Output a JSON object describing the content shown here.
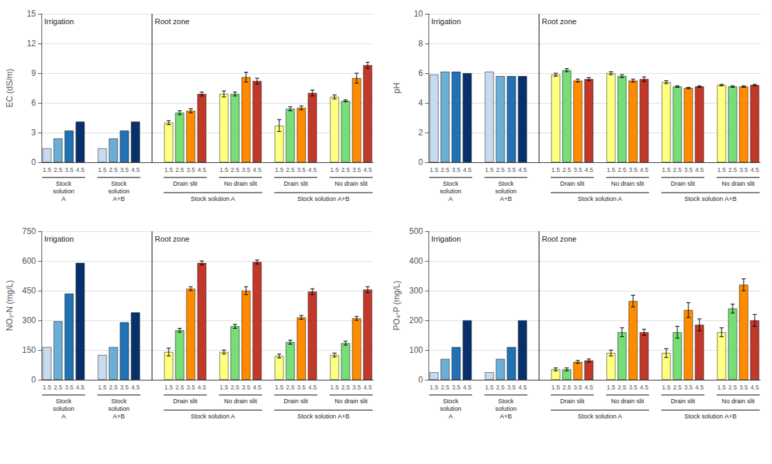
{
  "chart_data": [
    {
      "type": "bar",
      "ylabel": "EC (dS/m)",
      "ylim": [
        0,
        15
      ],
      "yticks": [
        0,
        3,
        6,
        9,
        12,
        15
      ],
      "grid": true,
      "categories": [
        "1.5",
        "2.5",
        "3.5",
        "4.5"
      ],
      "sections": [
        {
          "label": "Irrigation",
          "groups": [
            {
              "label": "Stock\nsolution\nA",
              "values": [
                1.4,
                2.4,
                3.2,
                4.1
              ],
              "colors": [
                "#c6dbef",
                "#6baed6",
                "#2171b5",
                "#08306b"
              ]
            },
            {
              "label": "Stock\nsolution\nA+B",
              "values": [
                1.4,
                2.4,
                3.2,
                4.1
              ],
              "colors": [
                "#c6dbef",
                "#6baed6",
                "#2171b5",
                "#08306b"
              ]
            }
          ]
        },
        {
          "label": "Root zone",
          "groups": [
            {
              "label": "Drain slit",
              "sublabel": "Stock solution A",
              "values": [
                4.0,
                5.0,
                5.2,
                6.9
              ],
              "errors": [
                0.2,
                0.2,
                0.2,
                0.2
              ],
              "colors": [
                "#ffff80",
                "#77dd77",
                "#ff8c00",
                "#c0392b"
              ]
            },
            {
              "label": "No drain slit",
              "sublabel": "Stock solution A",
              "values": [
                6.9,
                6.9,
                8.6,
                8.2
              ],
              "errors": [
                0.3,
                0.2,
                0.5,
                0.3
              ],
              "colors": [
                "#ffff80",
                "#77dd77",
                "#ff8c00",
                "#c0392b"
              ]
            },
            {
              "label": "Drain slit",
              "sublabel": "Stock solution A+B",
              "values": [
                3.7,
                5.4,
                5.5,
                7.0
              ],
              "errors": [
                0.6,
                0.2,
                0.2,
                0.3
              ],
              "colors": [
                "#ffff80",
                "#77dd77",
                "#ff8c00",
                "#c0392b"
              ]
            },
            {
              "label": "No drain slit",
              "sublabel": "Stock solution A+B",
              "values": [
                6.6,
                6.2,
                8.5,
                9.8
              ],
              "errors": [
                0.2,
                0.1,
                0.5,
                0.3
              ],
              "colors": [
                "#ffff80",
                "#77dd77",
                "#ff8c00",
                "#c0392b"
              ]
            }
          ]
        }
      ]
    },
    {
      "type": "bar",
      "ylabel": "pH",
      "ylim": [
        0,
        10
      ],
      "yticks": [
        0,
        2,
        4,
        6,
        8,
        10
      ],
      "grid": true,
      "categories": [
        "1.5",
        "2.5",
        "3.5",
        "4.5"
      ],
      "sections": [
        {
          "label": "Irrigation",
          "groups": [
            {
              "label": "Stock\nsolution\nA",
              "values": [
                5.9,
                6.1,
                6.1,
                6.0
              ],
              "colors": [
                "#c6dbef",
                "#6baed6",
                "#2171b5",
                "#08306b"
              ]
            },
            {
              "label": "Stock\nsolution\nA+B",
              "values": [
                6.1,
                5.8,
                5.8,
                5.8
              ],
              "colors": [
                "#c6dbef",
                "#6baed6",
                "#2171b5",
                "#08306b"
              ]
            }
          ]
        },
        {
          "label": "Root zone",
          "groups": [
            {
              "label": "Drain slit",
              "sublabel": "Stock solution A",
              "values": [
                5.9,
                6.2,
                5.5,
                5.6
              ],
              "errors": [
                0.1,
                0.1,
                0.1,
                0.1
              ],
              "colors": [
                "#ffff80",
                "#77dd77",
                "#ff8c00",
                "#c0392b"
              ]
            },
            {
              "label": "No drain slit",
              "sublabel": "Stock solution A",
              "values": [
                6.0,
                5.8,
                5.5,
                5.6
              ],
              "errors": [
                0.1,
                0.1,
                0.1,
                0.15
              ],
              "colors": [
                "#ffff80",
                "#77dd77",
                "#ff8c00",
                "#c0392b"
              ]
            },
            {
              "label": "Drain slit",
              "sublabel": "Stock solution A+B",
              "values": [
                5.4,
                5.1,
                5.0,
                5.1
              ],
              "errors": [
                0.1,
                0.05,
                0.05,
                0.05
              ],
              "colors": [
                "#ffff80",
                "#77dd77",
                "#ff8c00",
                "#c0392b"
              ]
            },
            {
              "label": "No drain slit",
              "sublabel": "Stock solution A+B",
              "values": [
                5.2,
                5.1,
                5.1,
                5.2
              ],
              "errors": [
                0.05,
                0.05,
                0.05,
                0.05
              ],
              "colors": [
                "#ffff80",
                "#77dd77",
                "#ff8c00",
                "#c0392b"
              ]
            }
          ]
        }
      ]
    },
    {
      "type": "bar",
      "ylabel": "NO₃-N (mg/L)",
      "ylim": [
        0,
        750
      ],
      "yticks": [
        0,
        150,
        300,
        450,
        600,
        750
      ],
      "grid": true,
      "categories": [
        "1.5",
        "2.5",
        "3.5",
        "4.5"
      ],
      "sections": [
        {
          "label": "Irrigation",
          "groups": [
            {
              "label": "Stock\nsolution\nA",
              "values": [
                165,
                295,
                435,
                590
              ],
              "colors": [
                "#c6dbef",
                "#6baed6",
                "#2171b5",
                "#08306b"
              ]
            },
            {
              "label": "Stock\nsolution\nA+B",
              "values": [
                125,
                165,
                290,
                340
              ],
              "colors": [
                "#c6dbef",
                "#6baed6",
                "#2171b5",
                "#08306b"
              ]
            }
          ]
        },
        {
          "label": "Root zone",
          "groups": [
            {
              "label": "Drain slit",
              "sublabel": "Stock solution A",
              "values": [
                140,
                250,
                460,
                590
              ],
              "errors": [
                20,
                10,
                10,
                10
              ],
              "colors": [
                "#ffff80",
                "#77dd77",
                "#ff8c00",
                "#c0392b"
              ]
            },
            {
              "label": "No drain slit",
              "sublabel": "Stock solution A",
              "values": [
                140,
                270,
                450,
                595
              ],
              "errors": [
                10,
                10,
                20,
                10
              ],
              "colors": [
                "#ffff80",
                "#77dd77",
                "#ff8c00",
                "#c0392b"
              ]
            },
            {
              "label": "Drain slit",
              "sublabel": "Stock solution A+B",
              "values": [
                120,
                190,
                315,
                445
              ],
              "errors": [
                10,
                10,
                10,
                15
              ],
              "colors": [
                "#ffff80",
                "#77dd77",
                "#ff8c00",
                "#c0392b"
              ]
            },
            {
              "label": "No drain slit",
              "sublabel": "Stock solution A+B",
              "values": [
                125,
                185,
                310,
                455
              ],
              "errors": [
                10,
                10,
                10,
                15
              ],
              "colors": [
                "#ffff80",
                "#77dd77",
                "#ff8c00",
                "#c0392b"
              ]
            }
          ]
        }
      ]
    },
    {
      "type": "bar",
      "ylabel": "PO₄-P (mg/L)",
      "ylim": [
        0,
        500
      ],
      "yticks": [
        0,
        100,
        200,
        300,
        400,
        500
      ],
      "grid": true,
      "categories": [
        "1.5",
        "2.5",
        "3.5",
        "4.5"
      ],
      "sections": [
        {
          "label": "Irrigation",
          "groups": [
            {
              "label": "Stock\nsolution\nA",
              "values": [
                25,
                70,
                110,
                200
              ],
              "colors": [
                "#c6dbef",
                "#6baed6",
                "#2171b5",
                "#08306b"
              ]
            },
            {
              "label": "Stock\nsolution\nA+B",
              "values": [
                25,
                70,
                110,
                200
              ],
              "colors": [
                "#c6dbef",
                "#6baed6",
                "#2171b5",
                "#08306b"
              ]
            }
          ]
        },
        {
          "label": "Root zone",
          "groups": [
            {
              "label": "Drain slit",
              "sublabel": "Stock solution A",
              "values": [
                35,
                35,
                60,
                65
              ],
              "errors": [
                5,
                5,
                5,
                5
              ],
              "colors": [
                "#ffff80",
                "#77dd77",
                "#ff8c00",
                "#c0392b"
              ]
            },
            {
              "label": "No drain slit",
              "sublabel": "Stock solution A",
              "values": [
                90,
                160,
                265,
                160
              ],
              "errors": [
                10,
                15,
                20,
                10
              ],
              "colors": [
                "#ffff80",
                "#77dd77",
                "#ff8c00",
                "#c0392b"
              ]
            },
            {
              "label": "Drain slit",
              "sublabel": "Stock solution A+B",
              "values": [
                90,
                160,
                235,
                185
              ],
              "errors": [
                15,
                20,
                25,
                20
              ],
              "colors": [
                "#ffff80",
                "#77dd77",
                "#ff8c00",
                "#c0392b"
              ]
            },
            {
              "label": "No drain slit",
              "sublabel": "Stock solution A+B",
              "values": [
                160,
                240,
                320,
                200
              ],
              "errors": [
                15,
                15,
                20,
                20
              ],
              "colors": [
                "#ffff80",
                "#77dd77",
                "#ff8c00",
                "#c0392b"
              ]
            }
          ]
        }
      ]
    }
  ]
}
